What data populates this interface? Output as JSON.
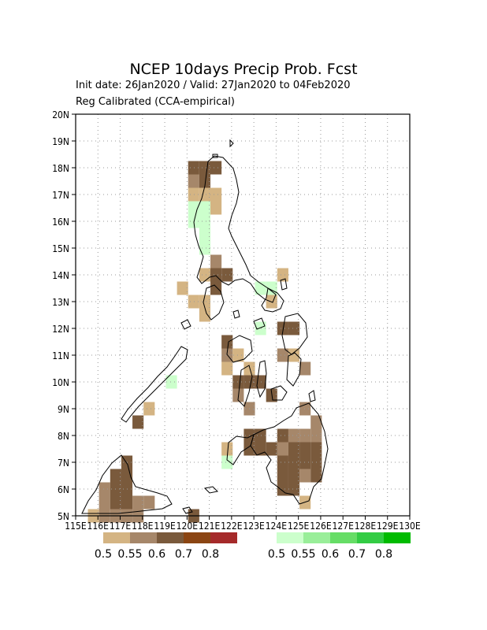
{
  "header": {
    "title": "NCEP 10days Precip Prob. Fcst",
    "subtitle": "Init date: 26Jan2020 / Valid: 27Jan2020 to 04Feb2020",
    "method": "Reg Calibrated (CCA-empirical)"
  },
  "axes": {
    "lat_labels": [
      "5N",
      "6N",
      "7N",
      "8N",
      "9N",
      "10N",
      "11N",
      "12N",
      "13N",
      "14N",
      "15N",
      "16N",
      "17N",
      "18N",
      "19N",
      "20N"
    ],
    "lon_labels": [
      "115E",
      "116E",
      "117E",
      "118E",
      "119E",
      "120E",
      "121E",
      "122E",
      "123E",
      "124E",
      "125E",
      "126E",
      "127E",
      "128E",
      "129E",
      "130E"
    ],
    "lon_range": [
      115,
      130
    ],
    "lat_range": [
      5,
      20
    ],
    "grid": "dotted"
  },
  "legend": {
    "dry": {
      "colors": [
        "#d4b483",
        "#a6876a",
        "#7a5a3c",
        "#8b4513",
        "#a52a2a"
      ],
      "labels": [
        "0.5",
        "0.55",
        "0.6",
        "0.7",
        "0.8"
      ]
    },
    "wet": {
      "colors": [
        "#ccffcc",
        "#99ee99",
        "#66dd66",
        "#33cc44",
        "#00bb00"
      ],
      "labels": [
        "0.5",
        "0.55",
        "0.6",
        "0.7",
        "0.8"
      ]
    }
  },
  "chart_data": {
    "type": "heatmap",
    "title": "NCEP 10days Precip Prob. Fcst",
    "cell_size_deg": 0.5,
    "cells": [
      {
        "lon": 120.3,
        "lat": 18.0,
        "c": 2
      },
      {
        "lon": 120.8,
        "lat": 18.0,
        "c": 2
      },
      {
        "lon": 121.3,
        "lat": 18.0,
        "c": 2
      },
      {
        "lon": 120.3,
        "lat": 17.5,
        "c": 1
      },
      {
        "lon": 120.8,
        "lat": 17.5,
        "c": 2
      },
      {
        "lon": 120.3,
        "lat": 17.0,
        "c": 0
      },
      {
        "lon": 120.8,
        "lat": 17.0,
        "c": 0
      },
      {
        "lon": 121.3,
        "lat": 17.0,
        "c": 0
      },
      {
        "lon": 120.3,
        "lat": 16.5,
        "c": 5
      },
      {
        "lon": 120.8,
        "lat": 16.5,
        "c": 5
      },
      {
        "lon": 121.3,
        "lat": 16.5,
        "c": 0
      },
      {
        "lon": 120.3,
        "lat": 16.0,
        "c": 5
      },
      {
        "lon": 120.8,
        "lat": 16.0,
        "c": 5
      },
      {
        "lon": 120.8,
        "lat": 15.5,
        "c": 5
      },
      {
        "lon": 120.8,
        "lat": 15.0,
        "c": 5
      },
      {
        "lon": 121.3,
        "lat": 14.5,
        "c": 1
      },
      {
        "lon": 121.3,
        "lat": 14.0,
        "c": 2
      },
      {
        "lon": 121.8,
        "lat": 14.0,
        "c": 2
      },
      {
        "lon": 120.8,
        "lat": 14.0,
        "c": 0
      },
      {
        "lon": 119.8,
        "lat": 13.5,
        "c": 0
      },
      {
        "lon": 120.3,
        "lat": 13.0,
        "c": 0
      },
      {
        "lon": 120.8,
        "lat": 13.0,
        "c": 0
      },
      {
        "lon": 121.3,
        "lat": 13.5,
        "c": 2
      },
      {
        "lon": 120.8,
        "lat": 12.5,
        "c": 0
      },
      {
        "lon": 123.3,
        "lat": 13.5,
        "c": 5
      },
      {
        "lon": 123.8,
        "lat": 13.5,
        "c": 5
      },
      {
        "lon": 124.3,
        "lat": 14.0,
        "c": 0
      },
      {
        "lon": 123.8,
        "lat": 13.0,
        "c": 0
      },
      {
        "lon": 123.3,
        "lat": 12.0,
        "c": 5
      },
      {
        "lon": 124.3,
        "lat": 12.0,
        "c": 2
      },
      {
        "lon": 124.3,
        "lat": 11.0,
        "c": 1
      },
      {
        "lon": 124.8,
        "lat": 11.0,
        "c": 0
      },
      {
        "lon": 124.8,
        "lat": 12.0,
        "c": 2
      },
      {
        "lon": 121.8,
        "lat": 11.5,
        "c": 2
      },
      {
        "lon": 121.8,
        "lat": 11.0,
        "c": 1
      },
      {
        "lon": 122.3,
        "lat": 11.0,
        "c": 0
      },
      {
        "lon": 121.8,
        "lat": 10.5,
        "c": 0
      },
      {
        "lon": 122.8,
        "lat": 10.5,
        "c": 0
      },
      {
        "lon": 122.3,
        "lat": 10.0,
        "c": 2
      },
      {
        "lon": 122.8,
        "lat": 10.0,
        "c": 2
      },
      {
        "lon": 123.3,
        "lat": 10.0,
        "c": 2
      },
      {
        "lon": 122.3,
        "lat": 9.5,
        "c": 1
      },
      {
        "lon": 123.8,
        "lat": 9.5,
        "c": 2
      },
      {
        "lon": 122.8,
        "lat": 9.0,
        "c": 1
      },
      {
        "lon": 125.3,
        "lat": 10.5,
        "c": 1
      },
      {
        "lon": 125.3,
        "lat": 9.0,
        "c": 1
      },
      {
        "lon": 119.3,
        "lat": 10.0,
        "c": 5
      },
      {
        "lon": 118.3,
        "lat": 9.0,
        "c": 0
      },
      {
        "lon": 117.8,
        "lat": 8.5,
        "c": 2
      },
      {
        "lon": 122.8,
        "lat": 8.0,
        "c": 2
      },
      {
        "lon": 123.3,
        "lat": 8.0,
        "c": 2
      },
      {
        "lon": 124.3,
        "lat": 8.0,
        "c": 2
      },
      {
        "lon": 124.8,
        "lat": 8.0,
        "c": 1
      },
      {
        "lon": 125.3,
        "lat": 8.0,
        "c": 1
      },
      {
        "lon": 125.8,
        "lat": 8.0,
        "c": 1
      },
      {
        "lon": 122.8,
        "lat": 7.5,
        "c": 2
      },
      {
        "lon": 123.3,
        "lat": 7.5,
        "c": 2
      },
      {
        "lon": 123.8,
        "lat": 7.5,
        "c": 2
      },
      {
        "lon": 124.3,
        "lat": 7.5,
        "c": 1
      },
      {
        "lon": 124.8,
        "lat": 7.5,
        "c": 2
      },
      {
        "lon": 125.3,
        "lat": 7.5,
        "c": 2
      },
      {
        "lon": 125.8,
        "lat": 7.5,
        "c": 2
      },
      {
        "lon": 125.8,
        "lat": 8.5,
        "c": 1
      },
      {
        "lon": 121.8,
        "lat": 7.5,
        "c": 0
      },
      {
        "lon": 121.8,
        "lat": 7.0,
        "c": 5
      },
      {
        "lon": 124.3,
        "lat": 7.0,
        "c": 2
      },
      {
        "lon": 124.8,
        "lat": 7.0,
        "c": 2
      },
      {
        "lon": 125.3,
        "lat": 7.0,
        "c": 2
      },
      {
        "lon": 125.8,
        "lat": 7.0,
        "c": 2
      },
      {
        "lon": 124.3,
        "lat": 6.5,
        "c": 2
      },
      {
        "lon": 124.8,
        "lat": 6.5,
        "c": 2
      },
      {
        "lon": 125.3,
        "lat": 6.5,
        "c": 1
      },
      {
        "lon": 125.8,
        "lat": 6.5,
        "c": 2
      },
      {
        "lon": 124.3,
        "lat": 6.0,
        "c": 2
      },
      {
        "lon": 124.8,
        "lat": 6.0,
        "c": 2
      },
      {
        "lon": 125.3,
        "lat": 5.5,
        "c": 0
      },
      {
        "lon": 117.3,
        "lat": 7.0,
        "c": 2
      },
      {
        "lon": 116.8,
        "lat": 6.5,
        "c": 2
      },
      {
        "lon": 117.3,
        "lat": 6.5,
        "c": 2
      },
      {
        "lon": 116.3,
        "lat": 6.0,
        "c": 1
      },
      {
        "lon": 116.8,
        "lat": 6.0,
        "c": 2
      },
      {
        "lon": 117.3,
        "lat": 6.0,
        "c": 2
      },
      {
        "lon": 116.3,
        "lat": 5.5,
        "c": 1
      },
      {
        "lon": 116.8,
        "lat": 5.5,
        "c": 2
      },
      {
        "lon": 117.3,
        "lat": 5.5,
        "c": 2
      },
      {
        "lon": 117.8,
        "lat": 5.5,
        "c": 1
      },
      {
        "lon": 118.3,
        "lat": 5.5,
        "c": 1
      },
      {
        "lon": 115.8,
        "lat": 5.0,
        "c": 0
      },
      {
        "lon": 116.3,
        "lat": 5.0,
        "c": 1
      },
      {
        "lon": 116.8,
        "lat": 5.0,
        "c": 1
      },
      {
        "lon": 117.3,
        "lat": 5.0,
        "c": 1
      },
      {
        "lon": 117.8,
        "lat": 5.0,
        "c": 1
      },
      {
        "lon": 120.3,
        "lat": 5.0,
        "c": 2
      }
    ]
  }
}
